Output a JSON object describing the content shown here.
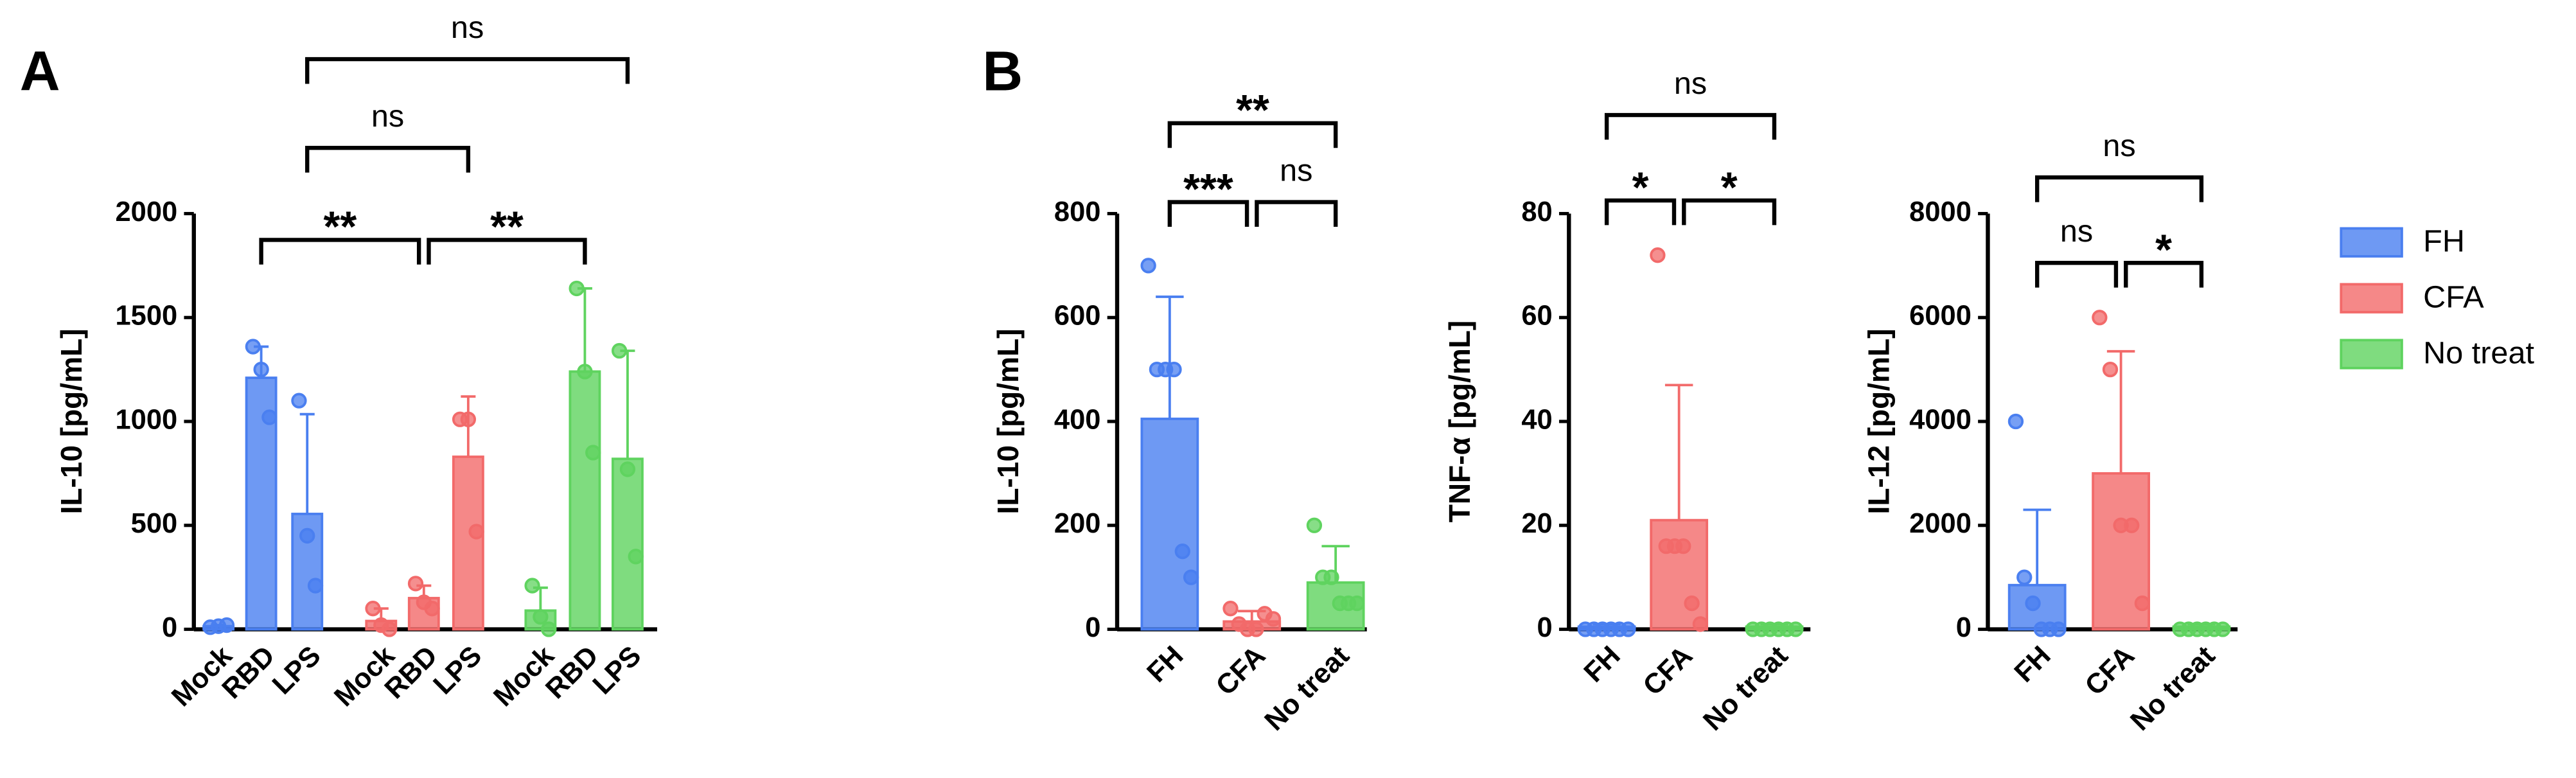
{
  "chart_data": [
    {
      "type": "grouped-bar",
      "panel": "A",
      "ylabel": "IL-10 [pg/mL]",
      "categories": [
        "Mock",
        "RBD",
        "LPS"
      ],
      "series": [
        {
          "name": "FH",
          "color": "#4a7ff0",
          "values": [
            15,
            1210,
            555
          ],
          "errors": [
            5,
            150,
            480
          ],
          "points": [
            [
              10,
              15,
              20
            ],
            [
              1360,
              1250,
              1020
            ],
            [
              1100,
              450,
              210
            ]
          ]
        },
        {
          "name": "CFA",
          "color": "#f26a6a",
          "values": [
            40,
            150,
            830
          ],
          "errors": [
            60,
            60,
            290
          ],
          "points": [
            [
              100,
              20,
              0
            ],
            [
              220,
              130,
              100
            ],
            [
              1010,
              1010,
              470
            ]
          ]
        },
        {
          "name": "No treat",
          "color": "#5fd35f",
          "values": [
            90,
            1240,
            820
          ],
          "errors": [
            110,
            400,
            520
          ],
          "points": [
            [
              210,
              60,
              0
            ],
            [
              1640,
              1240,
              850
            ],
            [
              1340,
              770,
              350
            ]
          ]
        }
      ],
      "ylim": [
        0,
        2000
      ],
      "yticks": [
        0,
        500,
        1000,
        1500,
        2000
      ],
      "comparisons": [
        {
          "from": [
            0,
            1
          ],
          "to": [
            1,
            1
          ],
          "label": "**"
        },
        {
          "from": [
            1,
            1
          ],
          "to": [
            2,
            1
          ],
          "label": "**"
        },
        {
          "from": [
            0,
            2
          ],
          "to": [
            1,
            2
          ],
          "label": "ns"
        },
        {
          "from": [
            0,
            2
          ],
          "to": [
            2,
            2
          ],
          "label": "ns"
        }
      ]
    },
    {
      "type": "bar",
      "panel": "B",
      "ylabel": "IL-10 [pg/mL]",
      "categories": [
        "FH",
        "CFA",
        "No treat"
      ],
      "colors": [
        "#4a7ff0",
        "#f26a6a",
        "#5fd35f"
      ],
      "values": [
        405,
        15,
        90
      ],
      "errors": [
        235,
        20,
        70
      ],
      "points": [
        [
          700,
          500,
          500,
          500,
          150,
          100
        ],
        [
          40,
          10,
          0,
          0,
          30,
          20
        ],
        [
          200,
          100,
          100,
          50,
          50,
          50
        ]
      ],
      "ylim": [
        0,
        800
      ],
      "yticks": [
        0,
        200,
        400,
        600,
        800
      ],
      "comparisons": [
        {
          "from": 0,
          "to": 1,
          "label": "***"
        },
        {
          "from": 1,
          "to": 2,
          "label": "ns"
        },
        {
          "from": 0,
          "to": 2,
          "label": "**"
        }
      ]
    },
    {
      "type": "bar",
      "ylabel": "TNF-α [pg/mL]",
      "categories": [
        "FH",
        "CFA",
        "No treat"
      ],
      "colors": [
        "#4a7ff0",
        "#f26a6a",
        "#5fd35f"
      ],
      "values": [
        0.5,
        21,
        0.5
      ],
      "errors": [
        0.5,
        26,
        0.5
      ],
      "points": [
        [
          0,
          0,
          0,
          0,
          0,
          0
        ],
        [
          72,
          16,
          16,
          16,
          5,
          1
        ],
        [
          0,
          0,
          0,
          0,
          0,
          0
        ]
      ],
      "ylim": [
        0,
        80
      ],
      "yticks": [
        0,
        20,
        40,
        60,
        80
      ],
      "comparisons": [
        {
          "from": 0,
          "to": 1,
          "label": "*"
        },
        {
          "from": 1,
          "to": 2,
          "label": "*"
        },
        {
          "from": 0,
          "to": 2,
          "label": "ns"
        }
      ]
    },
    {
      "type": "bar",
      "ylabel": "IL-12 [pg/mL]",
      "categories": [
        "FH",
        "CFA",
        "No treat"
      ],
      "colors": [
        "#4a7ff0",
        "#f26a6a",
        "#5fd35f"
      ],
      "values": [
        850,
        3000,
        50
      ],
      "errors": [
        1450,
        2350,
        50
      ],
      "points": [
        [
          4000,
          1000,
          500,
          0,
          0,
          0
        ],
        [
          6000,
          5000,
          2000,
          2000,
          500
        ],
        [
          0,
          0,
          0,
          0,
          0,
          0
        ]
      ],
      "ylim": [
        0,
        8000
      ],
      "yticks": [
        0,
        2000,
        4000,
        6000,
        8000
      ],
      "comparisons": [
        {
          "from": 0,
          "to": 1,
          "label": "ns"
        },
        {
          "from": 1,
          "to": 2,
          "label": "*"
        },
        {
          "from": 0,
          "to": 2,
          "label": "ns"
        }
      ]
    }
  ]
}
